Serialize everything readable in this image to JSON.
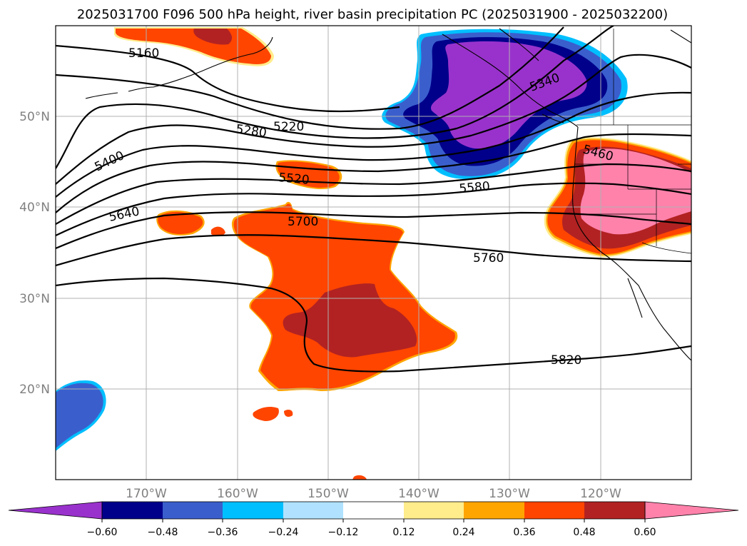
{
  "title": "2025031700 F096 500 hPa height, river basin precipitation PC (2025031900 - 2025032200)",
  "lon_labels": [
    "170°W",
    "160°W",
    "150°W",
    "140°W",
    "130°W",
    "120°W"
  ],
  "lat_labels": [
    "50°N",
    "40°N",
    "30°N",
    "20°N"
  ],
  "colorbar": {
    "colors": [
      "#9932CC",
      "#00008B",
      "#3A5FCD",
      "#00BFFF",
      "#B0E2FF",
      "#FFFFFF",
      "#FFEC8B",
      "#FFA500",
      "#FF4500",
      "#B22222",
      "#FF82AB"
    ],
    "ticks": [
      "−0.60",
      "−0.48",
      "−0.36",
      "−0.24",
      "−0.12",
      "0.12",
      "0.24",
      "0.36",
      "0.48",
      "0.60"
    ]
  },
  "contour_labels": [
    "5160",
    "5220",
    "5280",
    "5340",
    "5400",
    "5460",
    "5520",
    "5580",
    "5640",
    "5700",
    "5760",
    "5820"
  ]
}
